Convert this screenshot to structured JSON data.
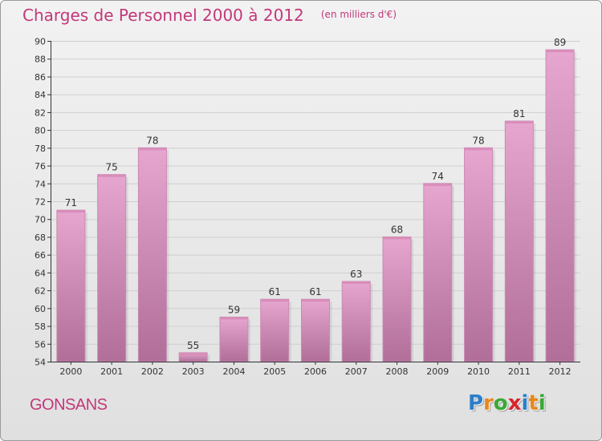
{
  "header": {
    "title": "Charges de Personnel 2000 à 2012",
    "subtitle": "(en milliers d'€)"
  },
  "footer": {
    "location": "GONSANS",
    "logo": {
      "text": "Proxiti",
      "letters": [
        {
          "char": "P",
          "color": "#2a7fc9"
        },
        {
          "char": "r",
          "color": "#e8871e"
        },
        {
          "char": "o",
          "color": "#3aa935"
        },
        {
          "char": "x",
          "color": "#d6262f"
        },
        {
          "char": "i",
          "color": "#2a7fc9"
        },
        {
          "char": "t",
          "color": "#e8871e"
        },
        {
          "char": "i",
          "color": "#3aa935"
        }
      ]
    }
  },
  "colors": {
    "bar_top": "#e6a6cf",
    "bar_bottom": "#b06e98",
    "title": "#c2387a",
    "grid": "#cfcfcf"
  },
  "chart_data": {
    "type": "bar",
    "title": "Charges de Personnel 2000 à 2012",
    "subtitle": "(en milliers d'€)",
    "xlabel": "",
    "ylabel": "",
    "categories": [
      "2000",
      "2001",
      "2002",
      "2003",
      "2004",
      "2005",
      "2006",
      "2007",
      "2008",
      "2009",
      "2010",
      "2011",
      "2012"
    ],
    "values": [
      71,
      75,
      78,
      55,
      59,
      61,
      61,
      63,
      68,
      74,
      78,
      81,
      89
    ],
    "data_labels": [
      "71",
      "75",
      "78",
      "55",
      "59",
      "61",
      "61",
      "63",
      "68",
      "74",
      "78",
      "81",
      "89"
    ],
    "ylim": [
      54,
      90
    ],
    "yticks": [
      54,
      56,
      58,
      60,
      62,
      64,
      66,
      68,
      70,
      72,
      74,
      76,
      78,
      80,
      82,
      84,
      86,
      88,
      90
    ],
    "ytick_labels": [
      "54",
      "56",
      "58",
      "60",
      "62",
      "64",
      "66",
      "68",
      "70",
      "72",
      "74",
      "76",
      "78",
      "80",
      "82",
      "84",
      "86",
      "88",
      "90"
    ],
    "grid": true,
    "legend": "none"
  }
}
